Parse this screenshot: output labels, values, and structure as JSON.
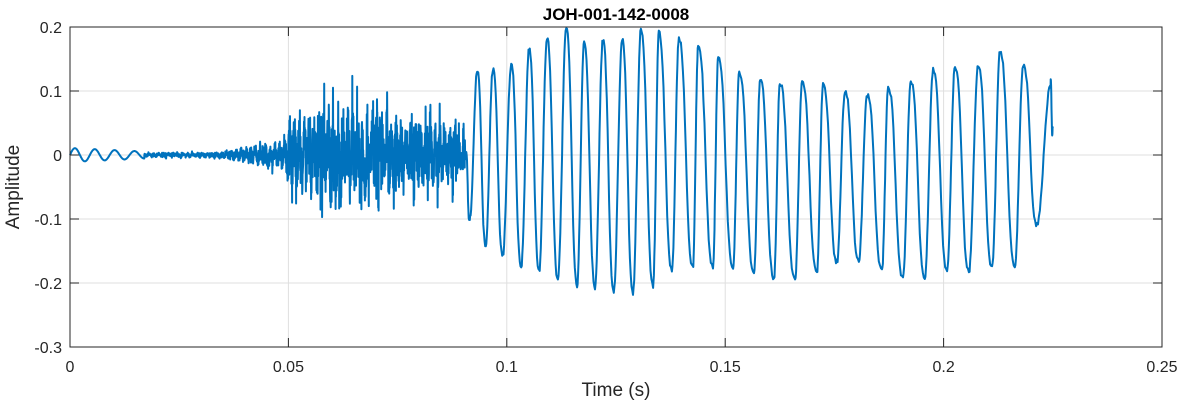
{
  "chart_data": {
    "type": "line",
    "title": "JOH-001-142-0008",
    "xlabel": "Time (s)",
    "ylabel": "Amplitude",
    "xlim": [
      0,
      0.25
    ],
    "ylim": [
      -0.3,
      0.2
    ],
    "grid": true,
    "xticks": [
      0,
      0.05,
      0.1,
      0.15,
      0.2,
      0.25
    ],
    "xtick_labels": [
      "0",
      "0.05",
      "0.1",
      "0.15",
      "0.2",
      "0.25"
    ],
    "yticks": [
      -0.3,
      -0.2,
      -0.1,
      0,
      0.1,
      0.2
    ],
    "ytick_labels": [
      "-0.3",
      "-0.2",
      "-0.1",
      "0",
      "0.1",
      "0.2"
    ],
    "line_color": "#0072BD",
    "series": [
      {
        "name": "waveform",
        "intro_oscillation": {
          "freq_hz": 220,
          "amplitude": 0.011,
          "end": 0.017
        },
        "noise_envelope": [
          [
            0.017,
            0.003
          ],
          [
            0.035,
            0.004
          ],
          [
            0.04,
            0.012
          ],
          [
            0.048,
            0.02
          ],
          [
            0.05,
            0.05
          ],
          [
            0.06,
            0.08
          ],
          [
            0.07,
            0.07
          ],
          [
            0.08,
            0.05
          ],
          [
            0.088,
            0.05
          ],
          [
            0.0905,
            0.03
          ]
        ],
        "extrema": [
          [
            0.0905,
            0.0
          ],
          [
            0.0916,
            -0.097
          ],
          [
            0.0932,
            0.133
          ],
          [
            0.0952,
            -0.141
          ],
          [
            0.0968,
            0.133
          ],
          [
            0.0991,
            -0.156
          ],
          [
            0.101,
            0.141
          ],
          [
            0.1033,
            -0.175
          ],
          [
            0.1051,
            0.166
          ],
          [
            0.1074,
            -0.183
          ],
          [
            0.1092,
            0.183
          ],
          [
            0.1117,
            -0.195
          ],
          [
            0.1136,
            0.2
          ],
          [
            0.1161,
            -0.203
          ],
          [
            0.1177,
            0.177
          ],
          [
            0.1202,
            -0.206
          ],
          [
            0.122,
            0.18
          ],
          [
            0.1245,
            -0.214
          ],
          [
            0.1264,
            0.18
          ],
          [
            0.1289,
            -0.216
          ],
          [
            0.1307,
            0.195
          ],
          [
            0.1335,
            -0.206
          ],
          [
            0.1348,
            0.192
          ],
          [
            0.1378,
            -0.181
          ],
          [
            0.1394,
            0.183
          ],
          [
            0.1426,
            -0.177
          ],
          [
            0.1438,
            0.169
          ],
          [
            0.1472,
            -0.175
          ],
          [
            0.1484,
            0.153
          ],
          [
            0.1518,
            -0.175
          ],
          [
            0.1532,
            0.13
          ],
          [
            0.1566,
            -0.183
          ],
          [
            0.158,
            0.117
          ],
          [
            0.1612,
            -0.192
          ],
          [
            0.1625,
            0.113
          ],
          [
            0.166,
            -0.195
          ],
          [
            0.1676,
            0.114
          ],
          [
            0.171,
            -0.183
          ],
          [
            0.1724,
            0.109
          ],
          [
            0.1756,
            -0.167
          ],
          [
            0.1774,
            0.097
          ],
          [
            0.1806,
            -0.164
          ],
          [
            0.1825,
            0.094
          ],
          [
            0.1859,
            -0.18
          ],
          [
            0.1873,
            0.105
          ],
          [
            0.1907,
            -0.191
          ],
          [
            0.1925,
            0.116
          ],
          [
            0.1957,
            -0.191
          ],
          [
            0.1976,
            0.133
          ],
          [
            0.2008,
            -0.18
          ],
          [
            0.2026,
            0.138
          ],
          [
            0.2058,
            -0.183
          ],
          [
            0.2079,
            0.141
          ],
          [
            0.2111,
            -0.177
          ],
          [
            0.2129,
            0.161
          ],
          [
            0.2163,
            -0.175
          ],
          [
            0.2182,
            0.138
          ],
          [
            0.2214,
            -0.109
          ],
          [
            0.2244,
            0.106
          ],
          [
            0.225,
            0.042
          ]
        ]
      }
    ]
  }
}
